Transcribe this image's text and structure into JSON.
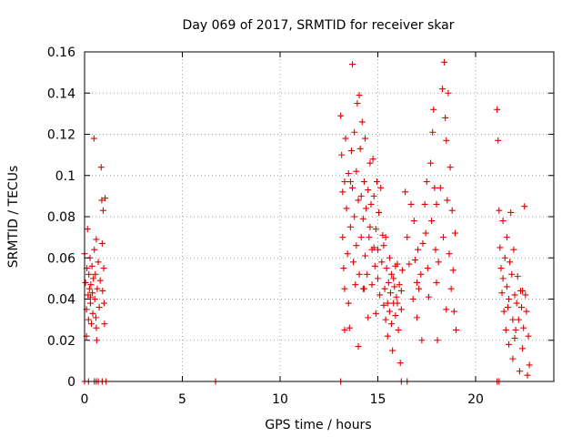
{
  "chart_data": {
    "type": "scatter",
    "title": "Day 069 of 2017, SRMTID for receiver skar",
    "xlabel": "GPS time / hours",
    "ylabel": "SRMTID / TECUs",
    "xlim": [
      0,
      24
    ],
    "ylim": [
      0,
      0.16
    ],
    "x_ticks": [
      0,
      5,
      10,
      15,
      20
    ],
    "x_tick_labels": [
      "0",
      "5",
      "10",
      "15",
      "20"
    ],
    "y_ticks": [
      0,
      0.02,
      0.04,
      0.06,
      0.08,
      0.1,
      0.12,
      0.14,
      0.16
    ],
    "y_tick_labels": [
      "0",
      "0.02",
      "0.04",
      "0.06",
      "0.08",
      "0.1",
      "0.12",
      "0.14",
      "0.16"
    ],
    "grid": true,
    "legend": "none",
    "marker": "plus",
    "color": "#e00000",
    "points": [
      [
        0.0,
        0.062
      ],
      [
        0.05,
        0.048
      ],
      [
        0.1,
        0.035
      ],
      [
        0.12,
        0.055
      ],
      [
        0.15,
        0.074
      ],
      [
        0.18,
        0.042
      ],
      [
        0.2,
        0.03
      ],
      [
        0.22,
        0.052
      ],
      [
        0.25,
        0.045
      ],
      [
        0.28,
        0.06
      ],
      [
        0.3,
        0.038
      ],
      [
        0.32,
        0.047
      ],
      [
        0.35,
        0.028
      ],
      [
        0.38,
        0.056
      ],
      [
        0.4,
        0.043
      ],
      [
        0.42,
        0.033
      ],
      [
        0.45,
        0.05
      ],
      [
        0.48,
        0.118
      ],
      [
        0.5,
        0.064
      ],
      [
        0.52,
        0.04
      ],
      [
        0.55,
        0.052
      ],
      [
        0.58,
        0.031
      ],
      [
        0.6,
        0.069
      ],
      [
        0.62,
        0.02
      ],
      [
        0.65,
        0.045
      ],
      [
        0.7,
        0.058
      ],
      [
        0.75,
        0.036
      ],
      [
        0.8,
        0.049
      ],
      [
        0.85,
        0.104
      ],
      [
        0.88,
        0.088
      ],
      [
        0.9,
        0.067
      ],
      [
        0.92,
        0.044
      ],
      [
        0.95,
        0.083
      ],
      [
        0.98,
        0.055
      ],
      [
        1.0,
        0.038
      ],
      [
        1.02,
        0.028
      ],
      [
        1.05,
        0.089
      ],
      [
        0.1,
        0.022
      ],
      [
        0.3,
        0.041
      ],
      [
        0.6,
        0.026
      ],
      [
        0.0,
        0.0
      ],
      [
        0.2,
        0.0
      ],
      [
        0.5,
        0.0
      ],
      [
        0.6,
        0.0
      ],
      [
        0.7,
        0.0
      ],
      [
        0.9,
        0.0
      ],
      [
        1.1,
        0.0
      ],
      [
        6.7,
        0.0
      ],
      [
        13.1,
        0.0
      ],
      [
        16.2,
        0.0
      ],
      [
        16.5,
        0.0
      ],
      [
        21.1,
        0.0
      ],
      [
        21.2,
        0.0
      ],
      [
        13.1,
        0.129
      ],
      [
        13.15,
        0.11
      ],
      [
        13.2,
        0.092
      ],
      [
        13.2,
        0.07
      ],
      [
        13.25,
        0.055
      ],
      [
        13.3,
        0.045
      ],
      [
        13.3,
        0.025
      ],
      [
        13.35,
        0.118
      ],
      [
        13.4,
        0.084
      ],
      [
        13.45,
        0.062
      ],
      [
        13.5,
        0.038
      ],
      [
        13.5,
        0.101
      ],
      [
        13.55,
        0.026
      ],
      [
        13.6,
        0.075
      ],
      [
        13.65,
        0.112
      ],
      [
        13.7,
        0.154
      ],
      [
        13.7,
        0.094
      ],
      [
        13.75,
        0.058
      ],
      [
        13.8,
        0.121
      ],
      [
        13.8,
        0.08
      ],
      [
        13.85,
        0.047
      ],
      [
        13.9,
        0.102
      ],
      [
        13.9,
        0.066
      ],
      [
        13.95,
        0.135
      ],
      [
        14.0,
        0.017
      ],
      [
        14.0,
        0.088
      ],
      [
        14.05,
        0.139
      ],
      [
        14.05,
        0.052
      ],
      [
        14.1,
        0.113
      ],
      [
        14.15,
        0.09
      ],
      [
        14.15,
        0.07
      ],
      [
        14.2,
        0.126
      ],
      [
        14.25,
        0.079
      ],
      [
        14.25,
        0.045
      ],
      [
        14.3,
        0.097
      ],
      [
        14.35,
        0.061
      ],
      [
        14.35,
        0.118
      ],
      [
        14.4,
        0.084
      ],
      [
        14.45,
        0.052
      ],
      [
        14.5,
        0.093
      ],
      [
        14.5,
        0.031
      ],
      [
        14.55,
        0.07
      ],
      [
        14.6,
        0.106
      ],
      [
        14.65,
        0.086
      ],
      [
        14.7,
        0.047
      ],
      [
        14.7,
        0.064
      ],
      [
        14.75,
        0.108
      ],
      [
        14.8,
        0.09
      ],
      [
        14.85,
        0.056
      ],
      [
        14.9,
        0.033
      ],
      [
        14.9,
        0.074
      ],
      [
        14.95,
        0.097
      ],
      [
        15.0,
        0.064
      ],
      [
        15.05,
        0.082
      ],
      [
        15.1,
        0.042
      ],
      [
        15.15,
        0.094
      ],
      [
        15.2,
        0.058
      ],
      [
        15.25,
        0.071
      ],
      [
        15.3,
        0.037
      ],
      [
        13.3,
        0.097
      ],
      [
        13.6,
        0.097
      ],
      [
        14.3,
        0.045
      ],
      [
        14.6,
        0.075
      ],
      [
        14.8,
        0.065
      ],
      [
        15.0,
        0.05
      ],
      [
        15.3,
        0.066
      ],
      [
        15.35,
        0.045
      ],
      [
        15.4,
        0.03
      ],
      [
        15.45,
        0.055
      ],
      [
        15.5,
        0.038
      ],
      [
        15.5,
        0.022
      ],
      [
        15.55,
        0.048
      ],
      [
        15.6,
        0.034
      ],
      [
        15.6,
        0.06
      ],
      [
        15.65,
        0.043
      ],
      [
        15.7,
        0.028
      ],
      [
        15.7,
        0.052
      ],
      [
        15.75,
        0.015
      ],
      [
        15.8,
        0.038
      ],
      [
        15.85,
        0.046
      ],
      [
        15.9,
        0.056
      ],
      [
        15.9,
        0.032
      ],
      [
        15.95,
        0.041
      ],
      [
        16.0,
        0.057
      ],
      [
        16.05,
        0.025
      ],
      [
        16.1,
        0.047
      ],
      [
        16.15,
        0.009
      ],
      [
        16.2,
        0.035
      ],
      [
        16.25,
        0.054
      ],
      [
        15.4,
        0.07
      ],
      [
        15.8,
        0.05
      ],
      [
        16.0,
        0.038
      ],
      [
        16.2,
        0.044
      ],
      [
        16.4,
        0.092
      ],
      [
        16.5,
        0.07
      ],
      [
        16.6,
        0.057
      ],
      [
        16.7,
        0.086
      ],
      [
        16.8,
        0.04
      ],
      [
        16.85,
        0.078
      ],
      [
        16.9,
        0.059
      ],
      [
        17.0,
        0.031
      ],
      [
        17.05,
        0.064
      ],
      [
        17.1,
        0.045
      ],
      [
        17.2,
        0.052
      ],
      [
        17.25,
        0.02
      ],
      [
        17.3,
        0.067
      ],
      [
        17.4,
        0.086
      ],
      [
        17.5,
        0.097
      ],
      [
        17.55,
        0.055
      ],
      [
        17.6,
        0.041
      ],
      [
        17.7,
        0.106
      ],
      [
        17.75,
        0.078
      ],
      [
        17.8,
        0.121
      ],
      [
        17.85,
        0.132
      ],
      [
        17.9,
        0.094
      ],
      [
        17.95,
        0.064
      ],
      [
        18.0,
        0.048
      ],
      [
        18.05,
        0.02
      ],
      [
        18.1,
        0.058
      ],
      [
        18.2,
        0.094
      ],
      [
        18.3,
        0.142
      ],
      [
        18.35,
        0.07
      ],
      [
        18.4,
        0.155
      ],
      [
        18.45,
        0.128
      ],
      [
        18.5,
        0.117
      ],
      [
        18.55,
        0.088
      ],
      [
        18.6,
        0.14
      ],
      [
        18.65,
        0.062
      ],
      [
        18.7,
        0.104
      ],
      [
        18.75,
        0.045
      ],
      [
        18.8,
        0.083
      ],
      [
        18.85,
        0.054
      ],
      [
        18.9,
        0.034
      ],
      [
        18.95,
        0.072
      ],
      [
        19.0,
        0.025
      ],
      [
        17.0,
        0.048
      ],
      [
        17.45,
        0.072
      ],
      [
        18.0,
        0.086
      ],
      [
        18.5,
        0.035
      ],
      [
        21.1,
        0.132
      ],
      [
        21.15,
        0.117
      ],
      [
        21.2,
        0.083
      ],
      [
        21.25,
        0.065
      ],
      [
        21.3,
        0.055
      ],
      [
        21.35,
        0.043
      ],
      [
        21.4,
        0.078
      ],
      [
        21.45,
        0.034
      ],
      [
        21.5,
        0.06
      ],
      [
        21.55,
        0.025
      ],
      [
        21.6,
        0.07
      ],
      [
        21.6,
        0.046
      ],
      [
        21.65,
        0.036
      ],
      [
        21.7,
        0.018
      ],
      [
        21.75,
        0.058
      ],
      [
        21.8,
        0.082
      ],
      [
        21.85,
        0.052
      ],
      [
        21.9,
        0.03
      ],
      [
        21.9,
        0.011
      ],
      [
        21.95,
        0.064
      ],
      [
        22.0,
        0.042
      ],
      [
        22.05,
        0.025
      ],
      [
        22.1,
        0.038
      ],
      [
        22.15,
        0.051
      ],
      [
        22.2,
        0.03
      ],
      [
        22.25,
        0.005
      ],
      [
        22.3,
        0.044
      ],
      [
        22.35,
        0.036
      ],
      [
        22.4,
        0.016
      ],
      [
        22.45,
        0.026
      ],
      [
        22.5,
        0.085
      ],
      [
        22.55,
        0.042
      ],
      [
        22.6,
        0.034
      ],
      [
        22.65,
        0.003
      ],
      [
        22.7,
        0.022
      ],
      [
        22.75,
        0.008
      ],
      [
        21.4,
        0.05
      ],
      [
        21.7,
        0.04
      ],
      [
        22.0,
        0.021
      ],
      [
        22.4,
        0.044
      ]
    ]
  }
}
